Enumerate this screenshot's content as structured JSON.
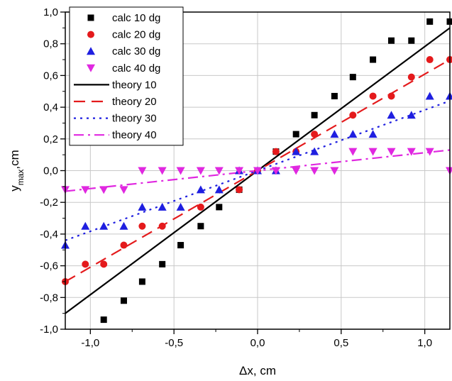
{
  "chart_data": {
    "type": "scatter",
    "title": "",
    "xlabel": "Δx, cm",
    "ylabel": "y_max,cm",
    "xlim": [
      -1.15,
      1.15
    ],
    "ylim": [
      -1.0,
      1.0
    ],
    "xticks": [
      -1.0,
      -0.5,
      0.0,
      0.5,
      1.0
    ],
    "yticks": [
      -1.0,
      -0.8,
      -0.6,
      -0.4,
      -0.2,
      0.0,
      0.2,
      0.4,
      0.6,
      0.8,
      1.0
    ],
    "xtick_labels": [
      "-1,0",
      "-0,5",
      "0,0",
      "0,5",
      "1,0"
    ],
    "ytick_labels": [
      "-1,0",
      "-0,8",
      "-0,6",
      "-0,4",
      "-0,2",
      "0,0",
      "0,2",
      "0,4",
      "0,6",
      "0,8",
      "1,0"
    ],
    "grid": true,
    "legend_position": "top-left",
    "scatter_series": [
      {
        "name": "calc 10 dg",
        "marker": "square",
        "color": "#000000",
        "x": [
          -0.92,
          -0.8,
          -0.69,
          -0.57,
          -0.46,
          -0.34,
          -0.23,
          -0.11,
          0.0,
          0.11,
          0.23,
          0.34,
          0.46,
          0.57,
          0.69,
          0.8,
          0.92,
          1.03,
          1.15
        ],
        "y": [
          -0.94,
          -0.82,
          -0.7,
          -0.59,
          -0.47,
          -0.35,
          -0.23,
          -0.12,
          0.0,
          0.12,
          0.23,
          0.35,
          0.47,
          0.59,
          0.7,
          0.82,
          0.82,
          0.94,
          0.94
        ]
      },
      {
        "name": "calc 20 dg",
        "marker": "circle",
        "color": "#e41a1c",
        "x": [
          -1.15,
          -1.03,
          -0.92,
          -0.8,
          -0.69,
          -0.57,
          -0.34,
          -0.11,
          0.0,
          0.11,
          0.23,
          0.34,
          0.57,
          0.69,
          0.8,
          0.92,
          1.03,
          1.15
        ],
        "y": [
          -0.7,
          -0.59,
          -0.59,
          -0.47,
          -0.35,
          -0.35,
          -0.23,
          -0.12,
          0.0,
          0.12,
          0.12,
          0.23,
          0.35,
          0.47,
          0.47,
          0.59,
          0.7,
          0.7
        ]
      },
      {
        "name": "calc 30 dg",
        "marker": "triangle-up",
        "color": "#1f1fe0",
        "x": [
          -1.15,
          -1.03,
          -0.92,
          -0.8,
          -0.69,
          -0.57,
          -0.46,
          -0.34,
          -0.23,
          -0.11,
          0.0,
          0.11,
          0.23,
          0.34,
          0.46,
          0.57,
          0.69,
          0.8,
          0.92,
          1.03,
          1.15
        ],
        "y": [
          -0.47,
          -0.35,
          -0.35,
          -0.35,
          -0.23,
          -0.23,
          -0.23,
          -0.12,
          -0.12,
          0.0,
          0.0,
          0.0,
          0.12,
          0.12,
          0.23,
          0.23,
          0.23,
          0.35,
          0.35,
          0.47,
          0.47
        ]
      },
      {
        "name": "calc 40 dg",
        "marker": "triangle-down",
        "color": "#e028e0",
        "x": [
          -1.15,
          -1.03,
          -0.92,
          -0.8,
          -0.69,
          -0.57,
          -0.46,
          -0.34,
          -0.23,
          -0.11,
          0.0,
          0.11,
          0.23,
          0.34,
          0.46,
          0.57,
          0.69,
          0.8,
          0.92,
          1.03,
          1.15
        ],
        "y": [
          -0.12,
          -0.12,
          -0.12,
          -0.12,
          0.0,
          0.0,
          0.0,
          0.0,
          0.0,
          0.0,
          0.0,
          0.0,
          0.0,
          0.0,
          0.0,
          0.12,
          0.12,
          0.12,
          0.12,
          0.12,
          0.0
        ]
      }
    ],
    "line_series": [
      {
        "name": "theory 10",
        "style": "solid",
        "color": "#000000",
        "x": [
          -1.15,
          1.15
        ],
        "y": [
          -0.9,
          0.9
        ]
      },
      {
        "name": "theory 20",
        "style": "dash",
        "color": "#e41a1c",
        "x": [
          -1.15,
          1.15
        ],
        "y": [
          -0.7,
          0.7
        ]
      },
      {
        "name": "theory 30",
        "style": "dot",
        "color": "#1f1fe0",
        "x": [
          -1.15,
          1.15
        ],
        "y": [
          -0.44,
          0.44
        ]
      },
      {
        "name": "theory 40",
        "style": "dash-dot",
        "color": "#e028e0",
        "x": [
          -1.15,
          1.15
        ],
        "y": [
          -0.13,
          0.13
        ]
      }
    ]
  }
}
